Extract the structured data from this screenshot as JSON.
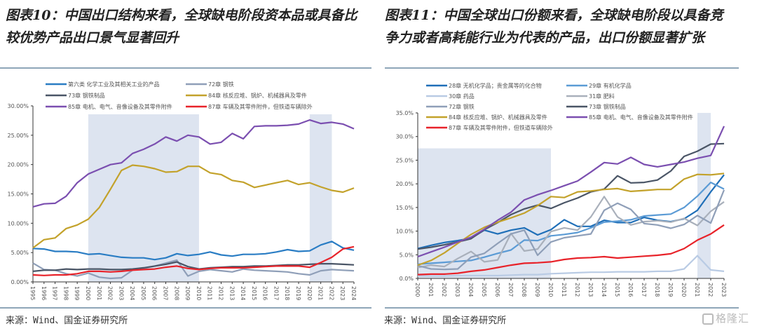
{
  "panels": {
    "left": {
      "title": "图表10：中国出口结构来看，全球缺电阶段资本品或具备比较优势产品出口景气显著回升",
      "source": "来源：Wind、国金证券研究所"
    },
    "right": {
      "title": "图表11：中国全球出口份额来看，全球缺电阶段以具备竞争力或者高耗能行业为代表的产品，出口份额显著扩张",
      "source": "来源：Wind、国金证券研究所"
    }
  },
  "watermark": "格隆汇",
  "chart_data": [
    {
      "type": "line",
      "title": "中国出口结构",
      "xlabel": "",
      "ylabel": "",
      "ylim": [
        0,
        30
      ],
      "ytick_step": 5,
      "ytick_format": "0.00%",
      "yticks": [
        "0.00%",
        "5.00%",
        "10.00%",
        "15.00%",
        "20.00%",
        "25.00%",
        "30.00%"
      ],
      "grid": false,
      "legend_position": "top",
      "x": [
        1995,
        1996,
        1997,
        1998,
        1999,
        2000,
        2001,
        2002,
        2003,
        2004,
        2005,
        2006,
        2007,
        2008,
        2009,
        2010,
        2011,
        2012,
        2013,
        2014,
        2015,
        2016,
        2017,
        2018,
        2019,
        2020,
        2021,
        2022,
        2023,
        2024
      ],
      "shaded_ranges": [
        [
          2000,
          2010
        ],
        [
          2020,
          2022
        ]
      ],
      "series": [
        {
          "name": "第六类 化学工业及其相关工业的产品",
          "color": "#2a7dc4",
          "values": [
            5.7,
            5.6,
            5.2,
            5.2,
            5.1,
            4.7,
            4.8,
            4.5,
            4.2,
            4.1,
            4.1,
            3.8,
            4.1,
            4.8,
            4.5,
            4.7,
            5.1,
            4.6,
            4.4,
            4.7,
            4.7,
            4.8,
            5.1,
            5.5,
            5.2,
            5.3,
            6.3,
            6.9,
            5.8,
            5.4
          ]
        },
        {
          "name": "72章 钢铁",
          "color": "#8f9fb8",
          "values": [
            3.2,
            2.1,
            2.0,
            1.4,
            1.0,
            1.5,
            0.8,
            0.6,
            0.7,
            2.0,
            2.3,
            2.7,
            3.2,
            3.7,
            1.0,
            1.8,
            2.1,
            1.9,
            1.7,
            2.2,
            2.0,
            1.9,
            1.8,
            1.7,
            1.4,
            1.2,
            1.9,
            2.1,
            2.0,
            1.9
          ]
        },
        {
          "name": "73章 钢铁制品",
          "color": "#4a5566",
          "values": [
            1.8,
            2.0,
            2.0,
            2.2,
            2.1,
            2.2,
            2.2,
            2.1,
            2.1,
            2.2,
            2.4,
            2.7,
            3.0,
            3.4,
            2.6,
            2.2,
            2.4,
            2.5,
            2.6,
            2.6,
            2.7,
            2.7,
            2.8,
            2.9,
            2.9,
            3.0,
            3.1,
            3.1,
            3.0,
            2.9
          ]
        },
        {
          "name": "84章 核反应堆、锅炉、机械器具及零件",
          "color": "#c3a22b",
          "values": [
            5.8,
            7.2,
            7.5,
            9.1,
            9.7,
            10.7,
            12.7,
            15.8,
            19.0,
            19.9,
            19.7,
            19.3,
            18.7,
            18.8,
            19.7,
            19.7,
            18.6,
            18.3,
            17.3,
            17.0,
            16.1,
            16.5,
            16.9,
            17.3,
            16.6,
            16.9,
            16.2,
            15.6,
            15.3,
            16.0
          ]
        },
        {
          "name": "85章 电机、电气、音像设备及其零件附件",
          "color": "#7b4fb0",
          "values": [
            12.8,
            13.3,
            13.4,
            14.6,
            16.9,
            18.4,
            19.2,
            20.0,
            20.3,
            21.9,
            22.6,
            23.5,
            24.7,
            24.0,
            25.0,
            24.7,
            23.5,
            23.8,
            25.3,
            24.4,
            26.5,
            26.6,
            26.6,
            26.7,
            26.9,
            27.6,
            27.0,
            27.2,
            26.9,
            26.1
          ]
        },
        {
          "name": "87章 车辆及其零件附件，但铁道车辆除外",
          "color": "#e8232a",
          "values": [
            1.2,
            1.1,
            1.2,
            1.2,
            1.4,
            1.8,
            1.8,
            1.7,
            1.8,
            2.0,
            2.1,
            2.2,
            2.5,
            2.7,
            2.3,
            2.1,
            2.3,
            2.4,
            2.4,
            2.4,
            2.5,
            2.6,
            2.7,
            2.7,
            2.7,
            2.5,
            3.3,
            4.2,
            5.6,
            6.0
          ]
        }
      ]
    },
    {
      "type": "line",
      "title": "中国全球出口份额",
      "xlabel": "",
      "ylabel": "",
      "ylim": [
        0,
        35
      ],
      "ytick_step": 5,
      "ytick_format": "0.0%",
      "yticks": [
        "0.0%",
        "5.0%",
        "10.0%",
        "15.0%",
        "20.0%",
        "25.0%",
        "30.0%",
        "35.0%"
      ],
      "grid": false,
      "legend_position": "top",
      "x": [
        2000,
        2001,
        2002,
        2003,
        2004,
        2005,
        2006,
        2007,
        2008,
        2009,
        2010,
        2011,
        2012,
        2013,
        2014,
        2015,
        2016,
        2017,
        2018,
        2019,
        2020,
        2021,
        2022,
        2023
      ],
      "shaded_ranges": [
        [
          2000,
          2010,
          27.5
        ],
        [
          2021,
          2022,
          35
        ]
      ],
      "series": [
        {
          "name": "28章 无机化学品；贵金属等的化合物",
          "color": "#1f6fb8",
          "values": [
            6.3,
            7.0,
            7.6,
            8.0,
            8.5,
            10.2,
            9.4,
            10.2,
            10.7,
            9.2,
            10.3,
            12.4,
            11.0,
            11.0,
            12.3,
            11.8,
            11.8,
            12.9,
            12.3,
            12.0,
            12.6,
            14.4,
            18.3,
            21.9
          ]
        },
        {
          "name": "29章 有机化学品",
          "color": "#5b9bd5",
          "values": [
            3.0,
            3.2,
            3.4,
            3.6,
            3.8,
            4.5,
            5.3,
            6.0,
            8.1,
            8.0,
            9.0,
            9.3,
            9.7,
            10.7,
            11.9,
            12.1,
            12.4,
            13.2,
            13.4,
            13.6,
            15.0,
            17.4,
            20.3,
            18.9
          ]
        },
        {
          "name": "30章 药品",
          "color": "#b9cbe4",
          "values": [
            0.5,
            0.5,
            0.5,
            0.6,
            0.6,
            0.6,
            0.6,
            0.7,
            0.8,
            0.8,
            1.0,
            1.1,
            1.2,
            1.3,
            1.3,
            1.4,
            1.4,
            1.4,
            1.5,
            1.5,
            2.0,
            4.8,
            1.8,
            1.5
          ]
        },
        {
          "name": "31章 肥料",
          "color": "#a9b0bb",
          "values": [
            2.3,
            2.8,
            2.5,
            4.2,
            5.7,
            3.5,
            3.9,
            9.5,
            5.8,
            6.2,
            9.9,
            10.7,
            10.2,
            13.0,
            17.3,
            13.0,
            11.3,
            12.0,
            12.2,
            11.9,
            12.7,
            11.2,
            14.2,
            16.2
          ]
        },
        {
          "name": "72章 钢铁",
          "color": "#8f9fb8",
          "values": [
            2.7,
            2.0,
            1.9,
            2.0,
            4.5,
            5.3,
            7.4,
            9.4,
            10.2,
            4.9,
            7.7,
            8.6,
            9.0,
            9.4,
            14.4,
            15.9,
            14.6,
            11.6,
            11.3,
            10.6,
            11.4,
            13.3,
            11.7,
            18.7
          ]
        },
        {
          "name": "73章 钢铁制品",
          "color": "#4a5566",
          "values": [
            6.2,
            6.6,
            7.1,
            7.7,
            8.4,
            10.3,
            11.8,
            13.5,
            14.7,
            15.5,
            14.8,
            16.0,
            17.0,
            18.3,
            18.9,
            21.7,
            20.2,
            20.3,
            20.8,
            22.7,
            25.8,
            26.9,
            28.4,
            28.5
          ]
        },
        {
          "name": "84章 核反应堆、锅炉、机械器具及零件",
          "color": "#c3a22b",
          "values": [
            2.8,
            3.8,
            5.4,
            7.4,
            9.3,
            10.8,
            11.9,
            12.8,
            13.8,
            15.4,
            17.3,
            17.1,
            18.3,
            18.5,
            18.8,
            19.0,
            18.4,
            18.6,
            18.8,
            18.8,
            21.0,
            22.0,
            21.9,
            22.2
          ]
        },
        {
          "name": "85章 电机、电气、音像设备及其零件附件",
          "color": "#7b4fb0",
          "values": [
            4.6,
            5.6,
            6.6,
            7.7,
            8.7,
            10.4,
            12.3,
            14.0,
            16.6,
            17.7,
            18.6,
            19.6,
            20.6,
            22.5,
            24.5,
            24.2,
            25.6,
            24.1,
            23.6,
            24.1,
            24.6,
            25.4,
            26.0,
            32.2
          ]
        },
        {
          "name": "87章 车辆及其零件附件，但铁道车辆除外",
          "color": "#e8232a",
          "values": [
            0.8,
            0.9,
            0.9,
            1.1,
            1.5,
            1.8,
            2.3,
            2.8,
            3.2,
            3.3,
            3.5,
            4.0,
            4.3,
            4.4,
            4.6,
            4.3,
            4.5,
            4.7,
            4.9,
            5.2,
            6.3,
            8.1,
            9.4,
            11.3
          ]
        }
      ]
    }
  ]
}
